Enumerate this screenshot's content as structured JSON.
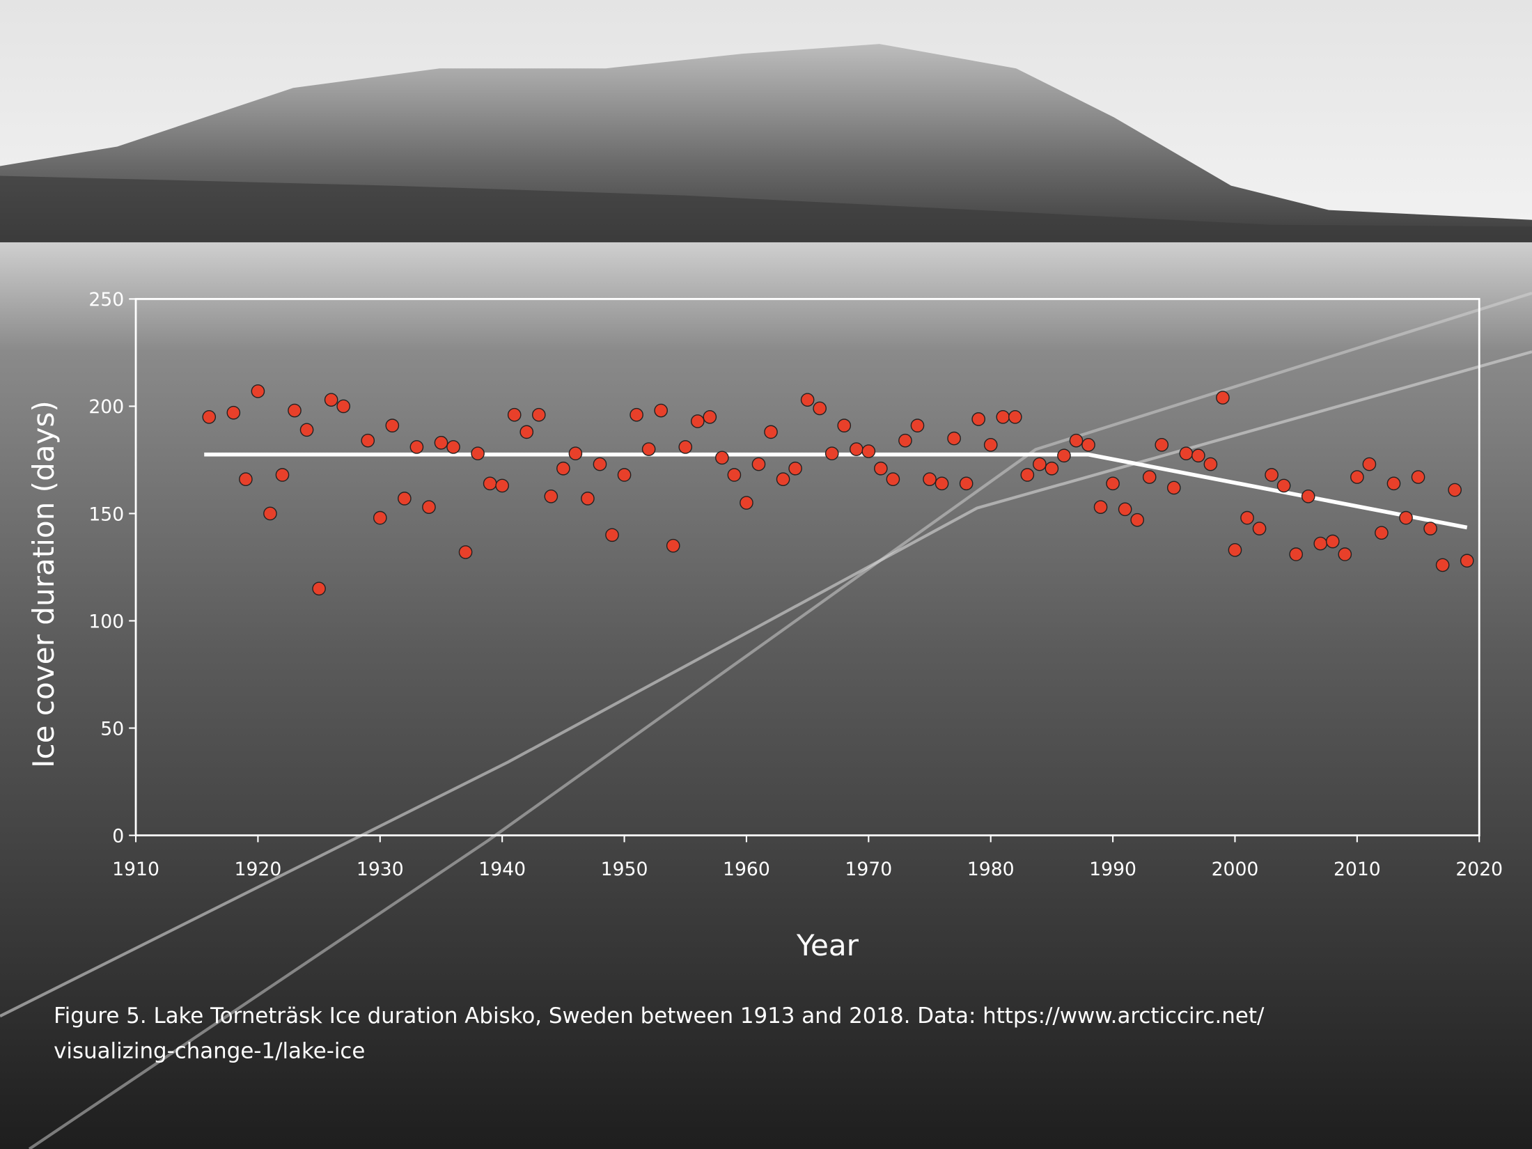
{
  "chart_data": {
    "type": "scatter",
    "x_label": "Year",
    "y_label": "Ice cover duration (days)",
    "caption": [
      "Figure 5. Lake Torneträsk Ice duration Abisko, Sweden between  1913 and 2018. Data: https://www.arcticcirc.net/",
      "visualizing-change-1/lake-ice"
    ],
    "xlim": [
      1910,
      2020
    ],
    "xticks": [
      1910,
      1920,
      1930,
      1940,
      1950,
      1960,
      1970,
      1980,
      1990,
      2000,
      2010,
      2020
    ],
    "ylim": [
      0,
      250
    ],
    "yticks": [
      0,
      50,
      100,
      150,
      200,
      250
    ],
    "series": [
      {
        "type": "scatter",
        "color": "#e8402a",
        "x": [
          1916,
          1918,
          1919,
          1920,
          1921,
          1922,
          1923,
          1924,
          1925,
          1926,
          1927,
          1929,
          1930,
          1931,
          1932,
          1933,
          1934,
          1935,
          1936,
          1937,
          1938,
          1939,
          1940,
          1941,
          1942,
          1943,
          1944,
          1945,
          1946,
          1947,
          1948,
          1949,
          1950,
          1951,
          1952,
          1953,
          1954,
          1955,
          1956,
          1957,
          1958,
          1959,
          1960,
          1961,
          1962,
          1963,
          1964,
          1965,
          1966,
          1967,
          1968,
          1969,
          1970,
          1971,
          1972,
          1973,
          1974,
          1975,
          1976,
          1977,
          1978,
          1979,
          1980,
          1981,
          1982,
          1983,
          1984,
          1985,
          1986,
          1987,
          1988,
          1989,
          1990,
          1991,
          1992,
          1993,
          1994,
          1995,
          1996,
          1997,
          1998,
          1999,
          2000,
          2001,
          2002,
          2003,
          2004,
          2005,
          2006,
          2007,
          2008,
          2009,
          2010,
          2011,
          2012,
          2013,
          2014,
          2015,
          2016,
          2017,
          2018,
          2019
        ],
        "values": [
          195,
          197,
          166,
          207,
          150,
          168,
          198,
          189,
          115,
          203,
          200,
          184,
          148,
          191,
          157,
          181,
          153,
          183,
          181,
          132,
          178,
          164,
          163,
          196,
          188,
          196,
          158,
          171,
          178,
          157,
          173,
          140,
          168,
          196,
          180,
          198,
          135,
          181,
          193,
          195,
          176,
          168,
          155,
          173,
          188,
          166,
          171,
          203,
          199,
          178,
          191,
          180,
          179,
          171,
          166,
          184,
          191,
          166,
          164,
          185,
          164,
          194,
          182,
          195,
          195,
          168,
          173,
          171,
          177,
          184,
          182,
          153,
          164,
          152,
          147,
          167,
          182,
          162,
          178,
          177,
          173,
          204,
          133,
          148,
          143,
          168,
          163,
          131,
          158,
          136,
          137,
          131,
          167,
          173,
          141,
          164,
          148,
          167,
          143,
          126,
          161,
          128
        ]
      },
      {
        "type": "line",
        "color": "#ffffff",
        "x": [
          1915.6,
          1988,
          2019
        ],
        "values": [
          177.5,
          177.5,
          143.5
        ]
      }
    ]
  }
}
